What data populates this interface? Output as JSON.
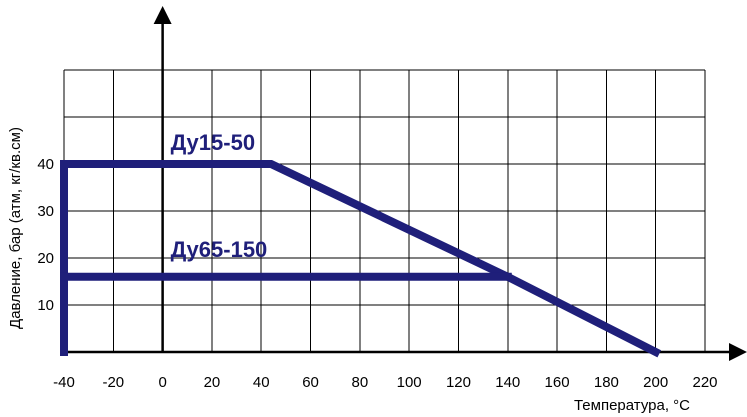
{
  "chart_data": {
    "type": "line",
    "title": "",
    "xlabel": "Температура, °C",
    "ylabel": "Давление, бар (атм, кг/кв.см)",
    "xlim": [
      -40,
      220
    ],
    "ylim": [
      0,
      60
    ],
    "x_ticks": [
      -40,
      -20,
      0,
      20,
      40,
      60,
      80,
      100,
      120,
      140,
      160,
      180,
      200,
      220
    ],
    "x_tick_labels": [
      "-40",
      "-20",
      "0",
      "20",
      "40",
      "60",
      "80",
      "100",
      "120",
      "140",
      "160",
      "180",
      "200",
      "220"
    ],
    "y_ticks": [
      10,
      20,
      30,
      40
    ],
    "y_tick_labels": [
      "10",
      "20",
      "30",
      "40"
    ],
    "grid": true,
    "series": [
      {
        "name": "Ду15-50",
        "points": [
          [
            -40,
            0
          ],
          [
            -40,
            40
          ],
          [
            44,
            40
          ],
          [
            140,
            16
          ],
          [
            200,
            0
          ]
        ]
      },
      {
        "name": "Ду65-150",
        "points": [
          [
            -40,
            16
          ],
          [
            140,
            16
          ]
        ]
      }
    ],
    "colors": {
      "series": "#1f1f7a",
      "grid": "#000000"
    }
  }
}
